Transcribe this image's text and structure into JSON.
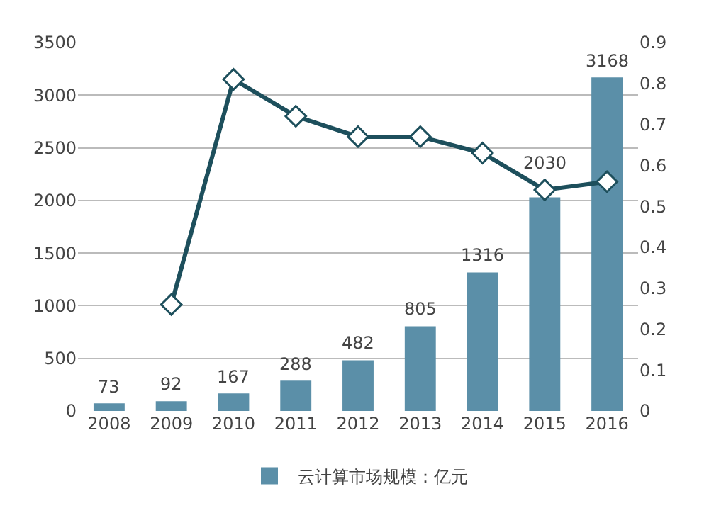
{
  "chart_data": {
    "type": "bar",
    "categories": [
      "2008",
      "2009",
      "2010",
      "2011",
      "2012",
      "2013",
      "2014",
      "2015",
      "2016"
    ],
    "series": [
      {
        "name": "云计算市场规模：亿元",
        "color": "#5b8fa8",
        "values": [
          73,
          92,
          167,
          288,
          482,
          805,
          1316,
          2030,
          3168
        ],
        "value_labels": [
          "73",
          "92",
          "167",
          "288",
          "482",
          "805",
          "1316",
          "2030",
          "3168"
        ]
      },
      {
        "type": "line",
        "axis": "y2",
        "color": "#1d4f5c",
        "marker": "diamond",
        "values": [
          null,
          0.26,
          0.81,
          0.72,
          0.67,
          0.67,
          0.63,
          0.54,
          0.56
        ]
      }
    ],
    "ylim": [
      0,
      3500
    ],
    "yticks": [
      0,
      500,
      1000,
      1500,
      2000,
      2500,
      3000,
      3500
    ],
    "y2lim": [
      0,
      0.9
    ],
    "y2ticks": [
      0,
      0.1,
      0.2,
      0.3,
      0.4,
      0.5,
      0.6,
      0.7,
      0.8,
      0.9
    ],
    "grid": "y",
    "legend": "bottom"
  }
}
